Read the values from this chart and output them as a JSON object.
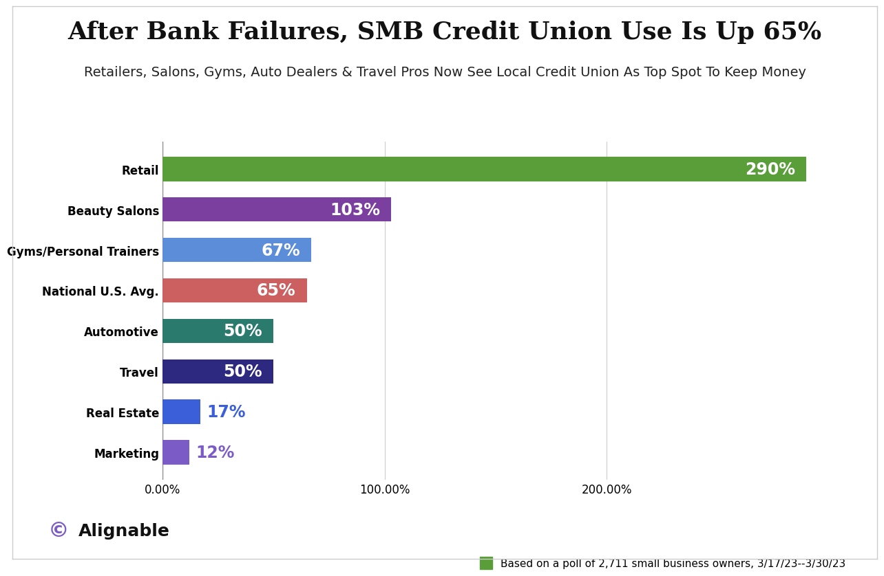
{
  "title": "After Bank Failures, SMB Credit Union Use Is Up 65%",
  "subtitle": "Retailers, Salons, Gyms, Auto Dealers & Travel Pros Now See Local Credit Union As Top Spot To Keep Money",
  "categories": [
    "Retail",
    "Beauty Salons",
    "Gyms/Personal Trainers",
    "National U.S. Avg.",
    "Automotive",
    "Travel",
    "Real Estate",
    "Marketing"
  ],
  "values": [
    290,
    103,
    67,
    65,
    50,
    50,
    17,
    12
  ],
  "bar_colors": [
    "#5a9e3a",
    "#7b3fa0",
    "#5b8dd9",
    "#cc6060",
    "#2a7a6e",
    "#2d2980",
    "#3a5fd9",
    "#7b5cc7"
  ],
  "label_colors_outside": [
    "#3a5fd9",
    "#7b5cc7"
  ],
  "labels": [
    "290%",
    "103%",
    "67%",
    "65%",
    "50%",
    "50%",
    "17%",
    "12%"
  ],
  "xlim": [
    0,
    310
  ],
  "xticks": [
    0,
    100,
    200
  ],
  "xtick_labels": [
    "0.00%",
    "100.00%",
    "200.00%"
  ],
  "background_color": "#ffffff",
  "grid_color": "#cccccc",
  "title_fontsize": 26,
  "subtitle_fontsize": 14,
  "bar_label_fontsize": 17,
  "ytick_fontsize": 14,
  "legend_text": "Based on a poll of 2,711 small business owners, 3/17/23--3/30/23",
  "legend_color": "#5a9e3a",
  "alignable_icon_color": "#7b5cc7",
  "outside_label_threshold": 20
}
